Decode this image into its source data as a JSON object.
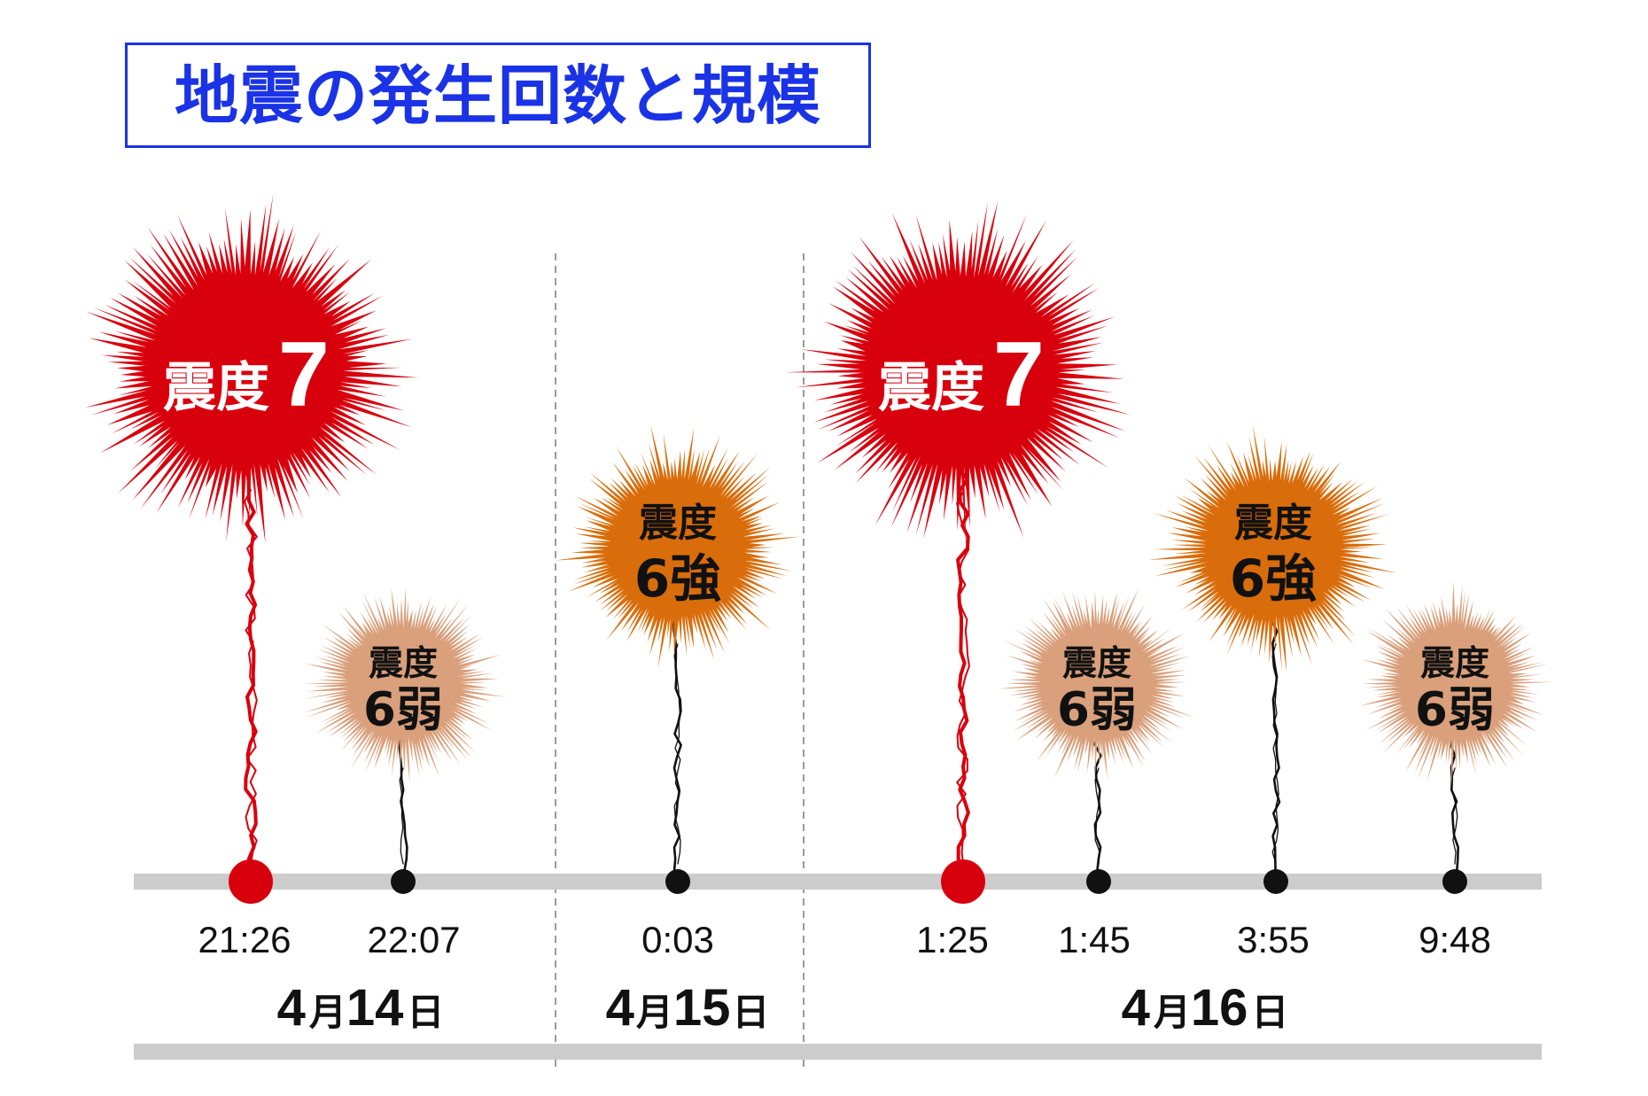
{
  "title": "地震の発生回数と規模",
  "colors": {
    "title": "#1a33e6",
    "timeline": "#cccccc",
    "divider": "#9a9a9a"
  },
  "days": [
    {
      "month": "4",
      "month_unit": "月",
      "day": "14",
      "day_unit": "日"
    },
    {
      "month": "4",
      "month_unit": "月",
      "day": "15",
      "day_unit": "日"
    },
    {
      "month": "4",
      "month_unit": "月",
      "day": "16",
      "day_unit": "日"
    }
  ],
  "events": [
    {
      "time": "21:26",
      "day": 0,
      "intensity_label": "震度",
      "intensity_value": "7",
      "color": "#d9000d",
      "label_color": "#ffffff",
      "stem_color": "#d9000d"
    },
    {
      "time": "22:07",
      "day": 0,
      "intensity_label": "震度",
      "intensity_value": "6弱",
      "color": "#d9a07b",
      "label_color": "#111111",
      "stem_color": "#111111"
    },
    {
      "time": "0:03",
      "day": 1,
      "intensity_label": "震度",
      "intensity_value": "6強",
      "color": "#d96d0b",
      "label_color": "#111111",
      "stem_color": "#111111"
    },
    {
      "time": "1:25",
      "day": 2,
      "intensity_label": "震度",
      "intensity_value": "7",
      "color": "#d9000d",
      "label_color": "#ffffff",
      "stem_color": "#d9000d"
    },
    {
      "time": "1:45",
      "day": 2,
      "intensity_label": "震度",
      "intensity_value": "6弱",
      "color": "#d9a07b",
      "label_color": "#111111",
      "stem_color": "#111111"
    },
    {
      "time": "3:55",
      "day": 2,
      "intensity_label": "震度",
      "intensity_value": "6強",
      "color": "#d96d0b",
      "label_color": "#111111",
      "stem_color": "#111111"
    },
    {
      "time": "9:48",
      "day": 2,
      "intensity_label": "震度",
      "intensity_value": "6弱",
      "color": "#d9a07b",
      "label_color": "#111111",
      "stem_color": "#111111"
    }
  ]
}
